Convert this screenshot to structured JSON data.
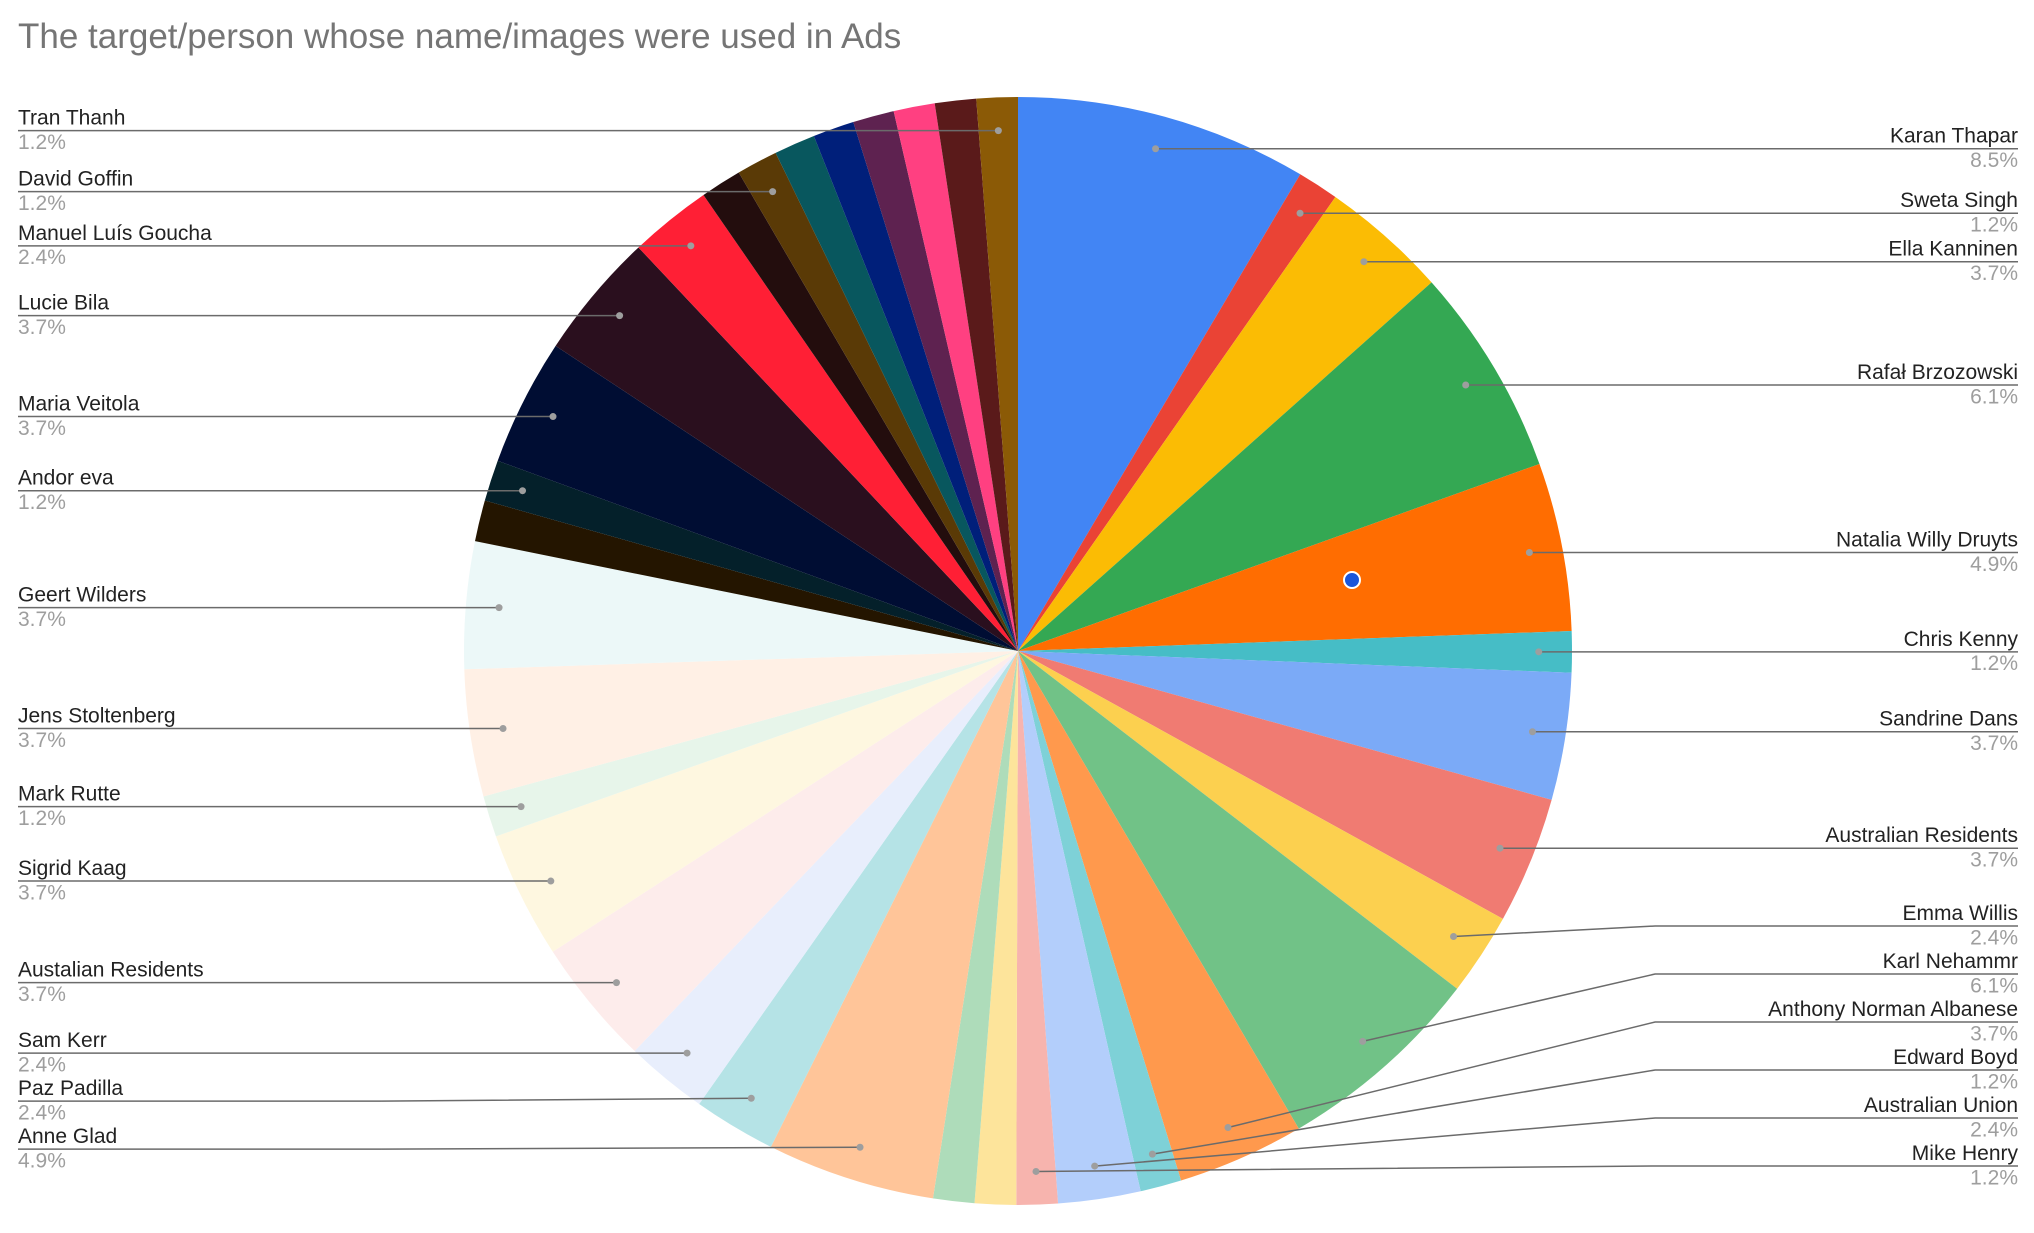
{
  "chart_data": {
    "type": "pie",
    "title": "The target/person whose name/images were used in Ads",
    "categories": [
      "Karan Thapar",
      "Sweta Singh",
      "Ella Kanninen",
      "Rafał Brzozowski",
      "Natalia Willy Druyts",
      "Chris Kenny",
      "Sandrine Dans",
      "Australian Residents",
      "Emma Willis",
      "Karl Nehammr",
      "Anthony Norman Albanese",
      "Edward Boyd",
      "Australian Union",
      "Mike Henry",
      null,
      null,
      "Anne Glad",
      "Paz Padilla",
      "Sam Kerr",
      "Austalian Residents",
      "Sigrid Kaag",
      "Mark Rutte",
      "Jens Stoltenberg",
      "Geert Wilders",
      null,
      "Andor eva",
      "Maria Veitola",
      "Lucie Bila",
      "Manuel Luís Goucha",
      null,
      "David Goffin",
      null,
      null,
      null,
      null,
      null,
      "Tran Thanh"
    ],
    "values": [
      8.5,
      1.2,
      3.7,
      6.1,
      4.9,
      1.2,
      3.7,
      3.7,
      2.4,
      6.1,
      3.7,
      1.2,
      2.4,
      1.2,
      1.2,
      1.2,
      4.9,
      2.4,
      2.4,
      3.7,
      3.7,
      1.2,
      3.7,
      3.7,
      1.2,
      1.2,
      3.7,
      3.7,
      2.4,
      1.2,
      1.2,
      1.2,
      1.2,
      1.2,
      1.2,
      1.2,
      1.2
    ],
    "value_labels": [
      "8.5%",
      "1.2%",
      "3.7%",
      "6.1%",
      "4.9%",
      "1.2%",
      "3.7%",
      "3.7%",
      "2.4%",
      "6.1%",
      "3.7%",
      "1.2%",
      "2.4%",
      "1.2%",
      null,
      null,
      "4.9%",
      "2.4%",
      "2.4%",
      "3.7%",
      "3.7%",
      "1.2%",
      "3.7%",
      "3.7%",
      null,
      "1.2%",
      "3.7%",
      "3.7%",
      "2.4%",
      null,
      "1.2%",
      null,
      null,
      null,
      null,
      null,
      "1.2%"
    ],
    "colors": [
      "#4285f4",
      "#ea4335",
      "#fbbc04",
      "#34a853",
      "#ff6d01",
      "#46bdc6",
      "#7baaf7",
      "#f07b72",
      "#fcd04f",
      "#71c287",
      "#ff994d",
      "#7ed1d7",
      "#b3cefb",
      "#f7b4ae",
      "#fde49b",
      "#aedcba",
      "#ffc599",
      "#b5e3e6",
      "#e8eefc",
      "#fdeceb",
      "#fef7e0",
      "#e7f5ea",
      "#fff0e5",
      "#ecf8f8",
      "#241500",
      "#04202a",
      "#000d33",
      "#2a0f1e",
      "#ff1f35",
      "#230d0d",
      "#5a3a06",
      "#08575e",
      "#001f7a",
      "#5e2250",
      "#ff4081",
      "#5a1a1a",
      "#8b5a06"
    ]
  }
}
